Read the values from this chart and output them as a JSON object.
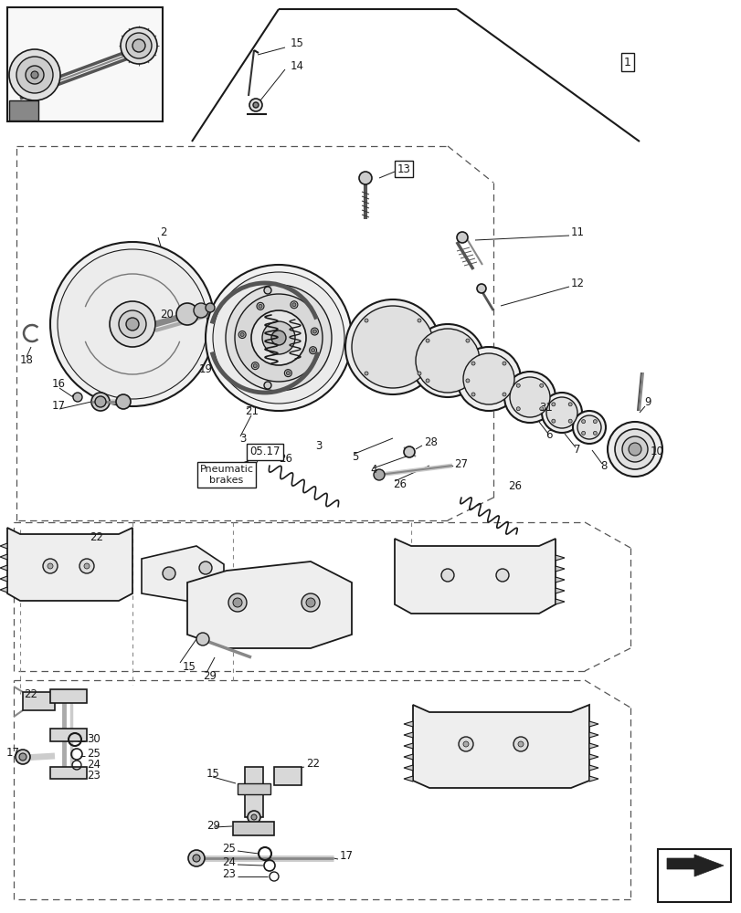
{
  "bg": "#ffffff",
  "lc": "#1a1a1a",
  "fig_w": 8.12,
  "fig_h": 10.0,
  "dpi": 100
}
